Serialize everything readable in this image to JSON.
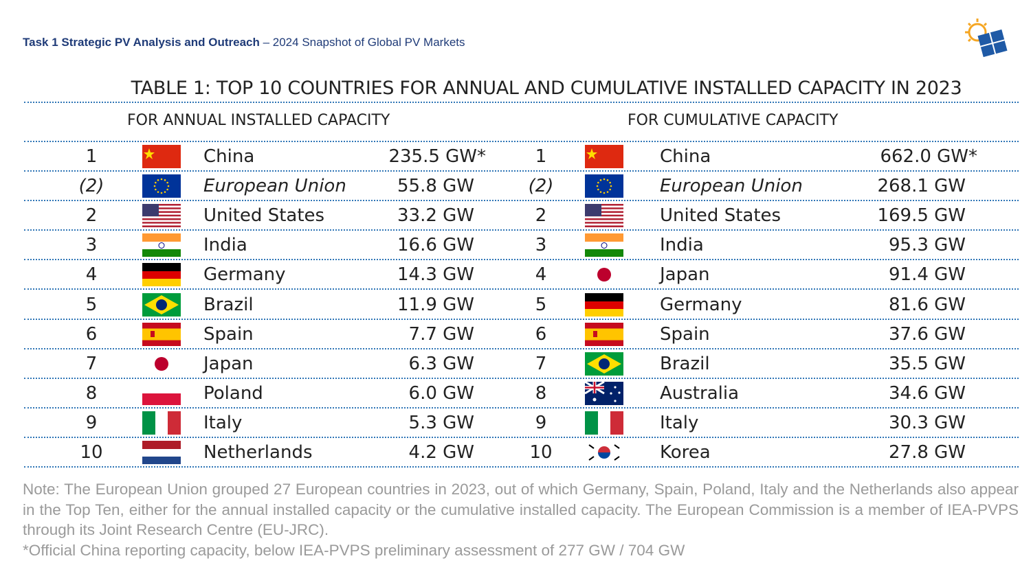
{
  "header": {
    "title": "Task 1 Strategic PV Analysis and Outreach",
    "subtitle": "– 2024 Snapshot of Global PV Markets"
  },
  "table": {
    "title": "TABLE 1: TOP 10 COUNTRIES FOR ANNUAL AND CUMULATIVE INSTALLED CAPACITY IN 2023",
    "annual": {
      "heading": "FOR ANNUAL INSTALLED CAPACITY",
      "rows": [
        [
          "1",
          "China",
          "235.5 GW*"
        ],
        [
          "(2)",
          "European Union",
          "55.8 GW"
        ],
        [
          "2",
          "United States",
          "33.2 GW"
        ],
        [
          "3",
          "India",
          "16.6 GW"
        ],
        [
          "4",
          "Germany",
          "14.3 GW"
        ],
        [
          "5",
          "Brazil",
          "11.9 GW"
        ],
        [
          "6",
          "Spain",
          "7.7 GW"
        ],
        [
          "7",
          "Japan",
          "6.3 GW"
        ],
        [
          "8",
          "Poland",
          "6.0 GW"
        ],
        [
          "9",
          "Italy",
          "5.3 GW"
        ],
        [
          "10",
          "Netherlands",
          "4.2 GW"
        ]
      ]
    },
    "cumulative": {
      "heading": "FOR CUMULATIVE CAPACITY",
      "rows": [
        [
          "1",
          "China",
          "662.0 GW*"
        ],
        [
          "(2)",
          "European Union",
          "268.1 GW"
        ],
        [
          "2",
          "United States",
          "169.5 GW"
        ],
        [
          "3",
          "India",
          "95.3 GW"
        ],
        [
          "4",
          "Japan",
          "91.4 GW"
        ],
        [
          "5",
          "Germany",
          "81.6 GW"
        ],
        [
          "6",
          "Spain",
          "37.6 GW"
        ],
        [
          "7",
          "Brazil",
          "35.5 GW"
        ],
        [
          "8",
          "Australia",
          "34.6 GW"
        ],
        [
          "9",
          "Italy",
          "30.3 GW"
        ],
        [
          "10",
          "Korea",
          "27.8 GW"
        ]
      ]
    }
  },
  "notes": [
    "Note: The European Union grouped 27 European countries in 2023, out of which Germany, Spain, Poland, Italy and the Netherlands also appear in the Top Ten, either for the annual installed capacity or the cumulative installed capacity. The European Commission is a member of IEA-PVPS through its Joint Research Centre (EU-JRC).",
    "*Official China reporting capacity, below IEA-PVPS preliminary assessment of 277 GW / 704 GW"
  ]
}
